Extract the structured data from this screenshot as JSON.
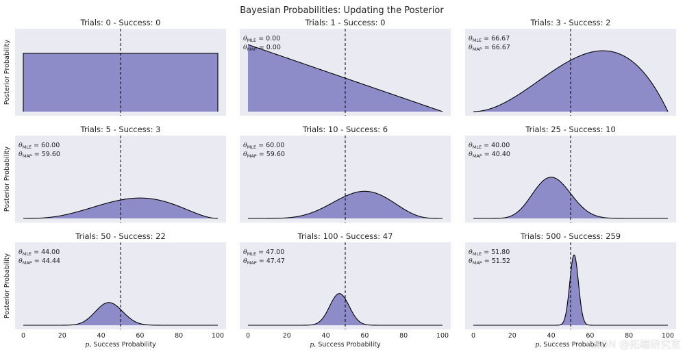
{
  "title": "Bayesian Probabilities: Updating the Posterior",
  "watermark": "CSDN @拓端研究室",
  "colors": {
    "panel_bg": "#eaeaf2",
    "fill": "#8d8cc8",
    "line": "#000000",
    "text": "#222222"
  },
  "chart_data": {
    "type": "area",
    "rows": 3,
    "cols": 3,
    "ylabel": "Posterior Probability",
    "xlabel": "p, Success Probability",
    "xlim": [
      0,
      100
    ],
    "xticks": [
      0,
      20,
      40,
      60,
      80,
      100
    ],
    "vline_x": 50,
    "mle_symbol": "θ_MLE =",
    "map_symbol": "θ_MAP =",
    "panels": [
      {
        "title": "Trials: 0 - Success: 0",
        "trials": 0,
        "success": 0,
        "mle": null,
        "map": null,
        "ymax": 1.35
      },
      {
        "title": "Trials: 1 - Success: 0",
        "trials": 1,
        "success": 0,
        "mle": "0.00",
        "map": "0.00",
        "ymax": 2.35
      },
      {
        "title": "Trials: 3 - Success: 2",
        "trials": 3,
        "success": 2,
        "mle": "66.67",
        "map": "66.67",
        "ymax": 2.3
      },
      {
        "title": "Trials: 5 - Success: 3",
        "trials": 5,
        "success": 3,
        "mle": "60.00",
        "map": "59.60",
        "ymax": 8.0
      },
      {
        "title": "Trials: 10 - Success: 6",
        "trials": 10,
        "success": 6,
        "mle": "60.00",
        "map": "59.60",
        "ymax": 8.0
      },
      {
        "title": "Trials: 25 - Success: 10",
        "trials": 25,
        "success": 10,
        "mle": "40.00",
        "map": "40.40",
        "ymax": 8.0
      },
      {
        "title": "Trials: 50 - Success: 22",
        "trials": 50,
        "success": 22,
        "mle": "44.00",
        "map": "44.44",
        "ymax": 20.0
      },
      {
        "title": "Trials: 100 - Success: 47",
        "trials": 100,
        "success": 47,
        "mle": "47.00",
        "map": "47.47",
        "ymax": 20.0
      },
      {
        "title": "Trials: 500 - Success: 259",
        "trials": 500,
        "success": 259,
        "mle": "51.80",
        "map": "51.52",
        "ymax": 20.0
      }
    ]
  }
}
